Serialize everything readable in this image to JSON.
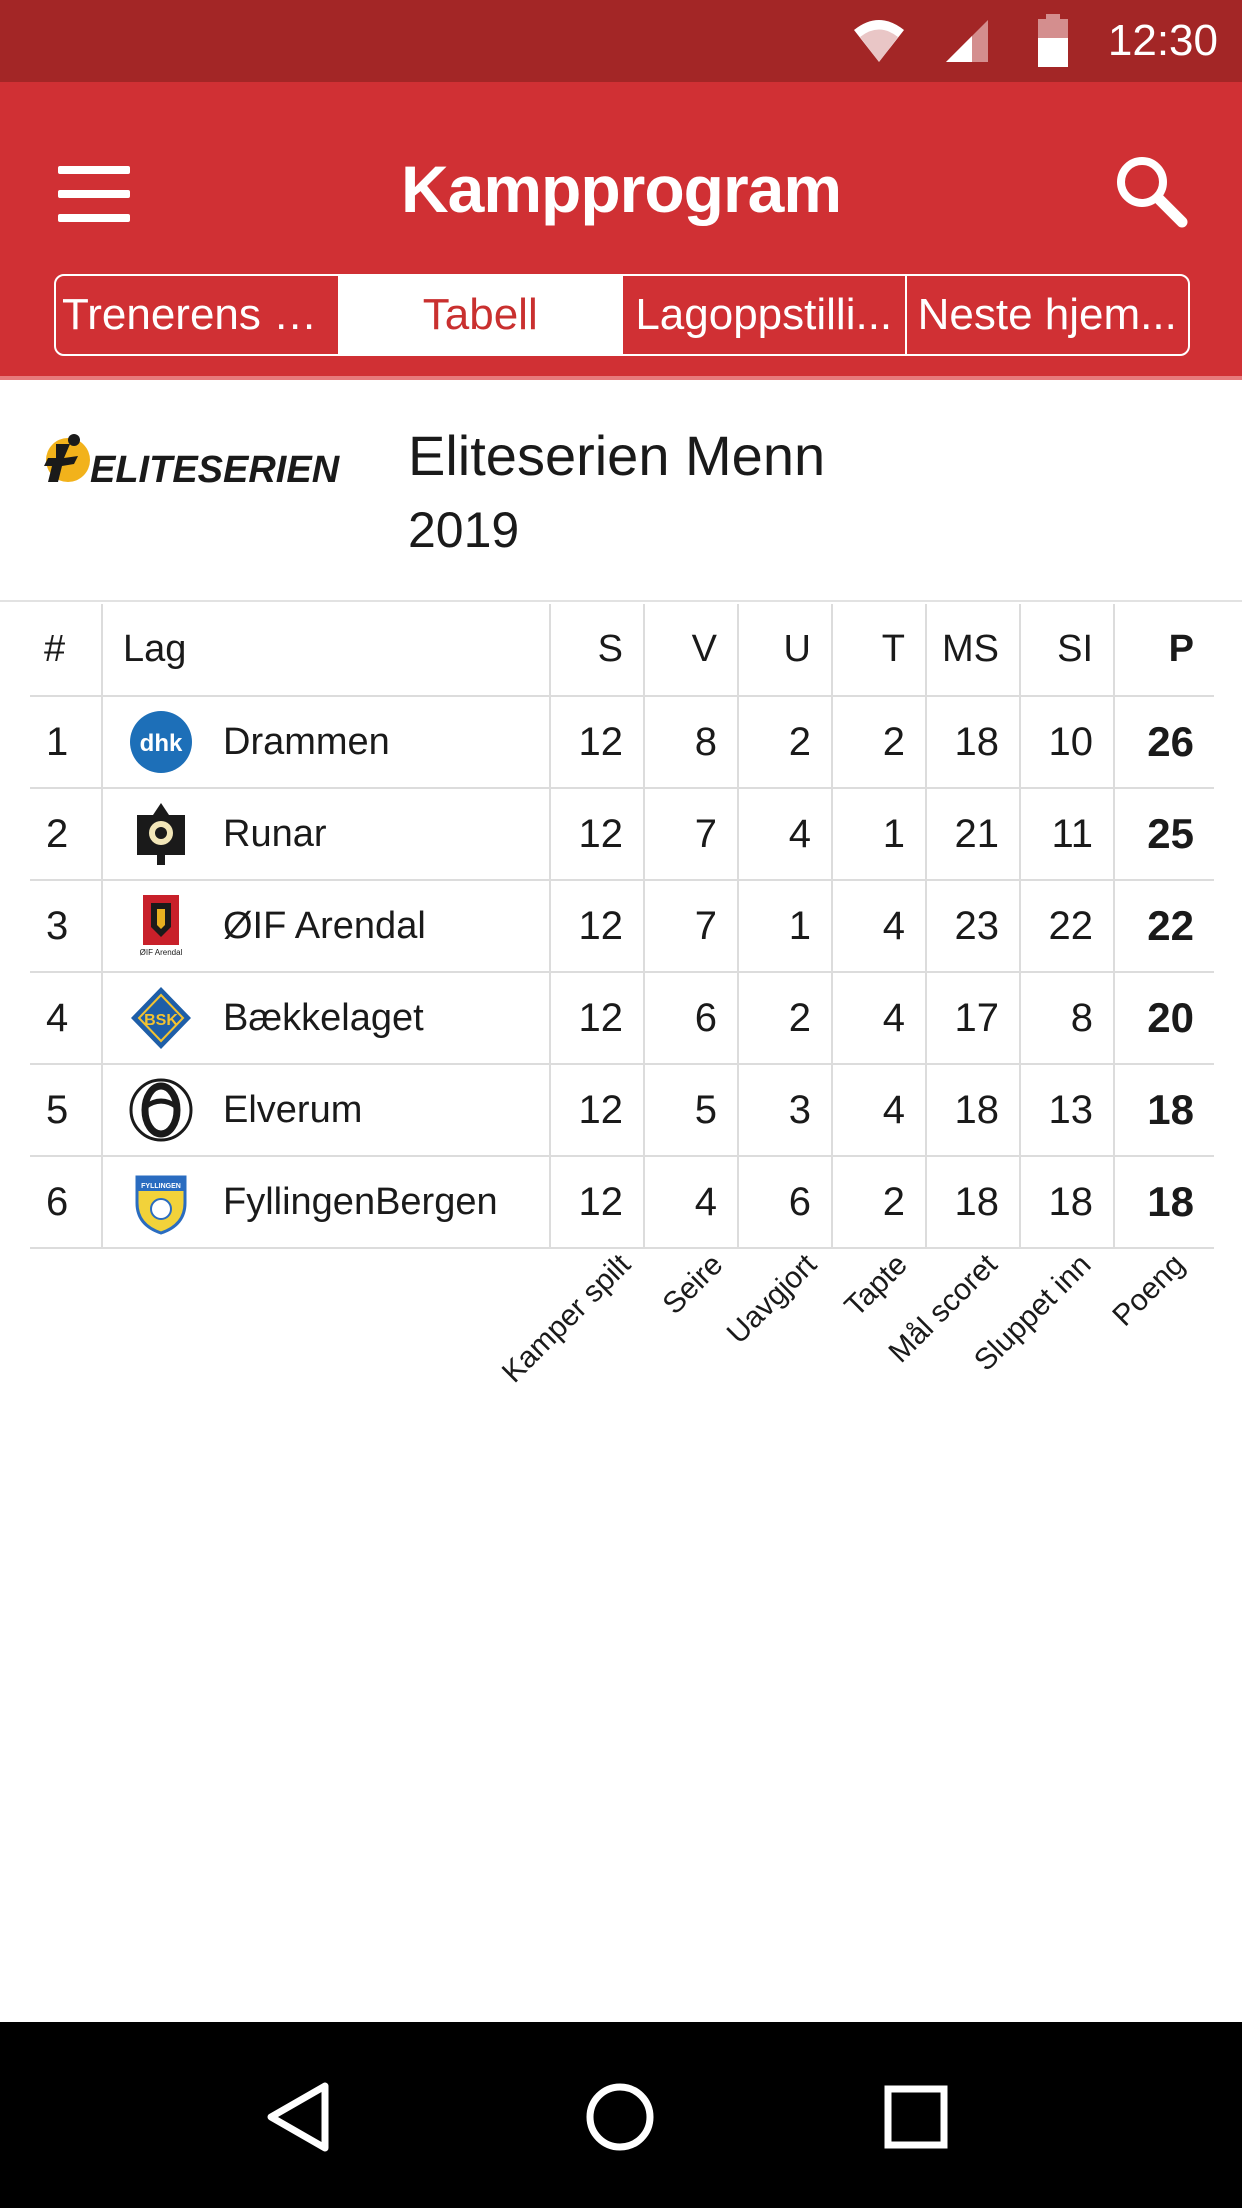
{
  "status_bar": {
    "time": "12:30",
    "icons": [
      "wifi-icon",
      "cell-signal-icon",
      "battery-icon"
    ]
  },
  "app_bar": {
    "title": "Kampprogram",
    "menu_icon": "hamburger-menu-icon",
    "search_icon": "search-icon"
  },
  "tabs": [
    {
      "label": "Trenerens ord",
      "active": false
    },
    {
      "label": "Tabell",
      "active": true
    },
    {
      "label": "Lagoppstilli...",
      "active": false
    },
    {
      "label": "Neste hjem...",
      "active": false
    }
  ],
  "league": {
    "logo_text": "ELITESERIEN",
    "name": "Eliteserien Menn",
    "year": "2019"
  },
  "table": {
    "headers": {
      "rank": "#",
      "team": "Lag",
      "s": "S",
      "v": "V",
      "u": "U",
      "t": "T",
      "ms": "MS",
      "si": "SI",
      "p": "P"
    },
    "rows": [
      {
        "rank": "1",
        "team": "Drammen",
        "logo": "dhk",
        "s": "12",
        "v": "8",
        "u": "2",
        "t": "2",
        "ms": "18",
        "si": "10",
        "p": "26"
      },
      {
        "rank": "2",
        "team": "Runar",
        "logo": "runar",
        "s": "12",
        "v": "7",
        "u": "4",
        "t": "1",
        "ms": "21",
        "si": "11",
        "p": "25"
      },
      {
        "rank": "3",
        "team": "ØIF Arendal",
        "logo": "arendal",
        "s": "12",
        "v": "7",
        "u": "1",
        "t": "4",
        "ms": "23",
        "si": "22",
        "p": "22"
      },
      {
        "rank": "4",
        "team": "Bækkelaget",
        "logo": "bsk",
        "s": "12",
        "v": "6",
        "u": "2",
        "t": "4",
        "ms": "17",
        "si": "8",
        "p": "20"
      },
      {
        "rank": "5",
        "team": "Elverum",
        "logo": "elverum",
        "s": "12",
        "v": "5",
        "u": "3",
        "t": "4",
        "ms": "18",
        "si": "13",
        "p": "18"
      },
      {
        "rank": "6",
        "team": "FyllingenBergen",
        "logo": "fyllingen",
        "s": "12",
        "v": "4",
        "u": "6",
        "t": "2",
        "ms": "18",
        "si": "18",
        "p": "18"
      }
    ]
  },
  "legend": [
    "Kamper spilt",
    "Seire",
    "Uavgjort",
    "Tapte",
    "Mål scoret",
    "Sluppet inn",
    "Poeng"
  ],
  "logo_texts": {
    "dhk": "dhk",
    "arendal": "ØIF Arendal",
    "bsk": "BSK",
    "fyllingen": "FYLLINGEN"
  },
  "colors": {
    "status_bar": "#a32626",
    "app_bar": "#d03034",
    "active_tab_text": "#c9302f",
    "nav_bar": "#000000"
  },
  "nav_bar": {
    "back_icon": "back-triangle-icon",
    "home_icon": "home-circle-icon",
    "recents_icon": "recents-square-icon"
  }
}
